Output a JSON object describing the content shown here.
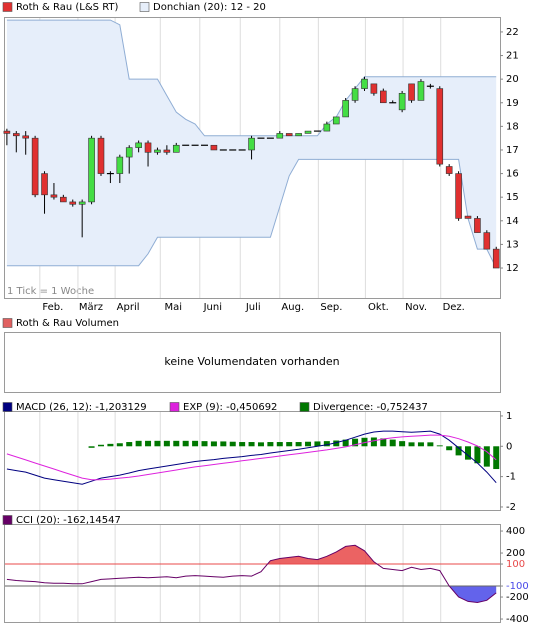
{
  "chart_data": [
    {
      "type": "candlestick",
      "series": [
        {
          "name": "Roth & Rau (L&S RT)",
          "up_color": "#44dd44",
          "down_color": "#e03030",
          "open": [
            17.8,
            17.7,
            17.6,
            17.5,
            16.0,
            15.1,
            15.0,
            14.8,
            14.7,
            14.8,
            17.5,
            16.0,
            16.0,
            16.7,
            17.1,
            17.3,
            16.9,
            17.0,
            16.9,
            17.2,
            17.2,
            17.2,
            17.2,
            17.0,
            17.0,
            17.0,
            17.0,
            17.5,
            17.5,
            17.5,
            17.7,
            17.6,
            17.7,
            17.8,
            17.8,
            18.1,
            18.4,
            19.1,
            19.6,
            19.8,
            19.5,
            19.0,
            18.7,
            19.8,
            19.1,
            19.7,
            19.6,
            16.3,
            16.0,
            14.2,
            14.1,
            13.5,
            12.8
          ],
          "high": [
            17.9,
            17.8,
            17.8,
            17.6,
            16.1,
            15.6,
            15.1,
            14.9,
            14.9,
            17.6,
            17.6,
            16.1,
            16.8,
            17.2,
            17.4,
            17.4,
            17.1,
            17.2,
            17.3,
            17.2,
            17.2,
            17.2,
            17.2,
            17.0,
            17.0,
            17.0,
            17.6,
            17.5,
            17.5,
            17.8,
            17.7,
            17.7,
            17.8,
            17.8,
            18.2,
            18.4,
            19.2,
            19.7,
            20.1,
            19.8,
            19.6,
            19.1,
            19.5,
            19.8,
            20.0,
            19.8,
            19.7,
            16.4,
            16.1,
            14.2,
            14.2,
            13.6,
            12.9
          ],
          "low": [
            17.2,
            16.9,
            16.8,
            15.0,
            14.3,
            14.9,
            14.8,
            14.6,
            13.3,
            14.7,
            15.9,
            15.6,
            15.6,
            16.0,
            16.9,
            16.3,
            16.8,
            16.8,
            16.9,
            17.2,
            17.2,
            17.2,
            17.0,
            17.0,
            17.0,
            17.0,
            16.6,
            17.5,
            17.5,
            17.5,
            17.6,
            17.6,
            17.7,
            17.8,
            17.8,
            18.1,
            18.4,
            19.0,
            19.5,
            19.3,
            19.0,
            19.0,
            18.6,
            19.0,
            19.1,
            19.6,
            16.3,
            15.9,
            14.0,
            14.1,
            13.5,
            12.8,
            12.0
          ],
          "close": [
            17.7,
            17.6,
            17.5,
            15.1,
            15.1,
            15.0,
            14.8,
            14.7,
            14.8,
            17.5,
            16.0,
            16.0,
            16.7,
            17.1,
            17.3,
            16.9,
            17.0,
            16.9,
            17.2,
            17.2,
            17.2,
            17.2,
            17.0,
            17.0,
            17.0,
            17.0,
            17.5,
            17.5,
            17.5,
            17.7,
            17.6,
            17.7,
            17.8,
            17.8,
            18.1,
            18.4,
            19.1,
            19.6,
            20.0,
            19.4,
            19.0,
            19.0,
            19.4,
            19.1,
            19.9,
            19.7,
            16.4,
            16.0,
            14.1,
            14.1,
            13.5,
            12.8,
            12.0
          ]
        },
        {
          "name": "Donchian (20): 12 - 20",
          "color": "#e6eefa",
          "line_color": "#8fadd4",
          "upper": [
            22.5,
            22.5,
            22.5,
            22.5,
            22.5,
            22.5,
            22.5,
            22.5,
            22.5,
            22.5,
            22.5,
            22.5,
            22.3,
            20.0,
            20.0,
            20.0,
            20.0,
            19.3,
            18.6,
            18.3,
            18.1,
            17.6,
            17.6,
            17.6,
            17.6,
            17.6,
            17.6,
            17.6,
            17.6,
            17.6,
            17.6,
            17.6,
            17.6,
            17.6,
            18.1,
            18.4,
            19.1,
            19.6,
            20.1,
            20.1,
            20.1,
            20.1,
            20.1,
            20.1,
            20.1,
            20.1,
            20.1,
            20.1,
            20.1,
            20.1,
            20.1,
            20.1,
            20.1
          ],
          "lower": [
            12.1,
            12.1,
            12.1,
            12.1,
            12.1,
            12.1,
            12.1,
            12.1,
            12.1,
            12.1,
            12.1,
            12.1,
            12.1,
            12.1,
            12.1,
            12.6,
            13.3,
            13.3,
            13.3,
            13.3,
            13.3,
            13.3,
            13.3,
            13.3,
            13.3,
            13.3,
            13.3,
            13.3,
            13.3,
            14.6,
            15.9,
            16.6,
            16.6,
            16.6,
            16.6,
            16.6,
            16.6,
            16.6,
            16.6,
            16.6,
            16.6,
            16.6,
            16.6,
            16.6,
            16.6,
            16.6,
            16.6,
            16.6,
            16.6,
            14.1,
            12.8,
            12.8,
            12.0
          ]
        }
      ],
      "categories": [
        null,
        null,
        null,
        null,
        null,
        null,
        null,
        null,
        null,
        null,
        null,
        null,
        null,
        null,
        null,
        null,
        null,
        null,
        null,
        null,
        null,
        null,
        null,
        null,
        null,
        null,
        null,
        null,
        null,
        null,
        null,
        null,
        null,
        null,
        null,
        null,
        null,
        null,
        null,
        null,
        null,
        null,
        null,
        null,
        null,
        null,
        null,
        null,
        null,
        null,
        null,
        null,
        null
      ],
      "xlim": [
        -0.2,
        52.4
      ],
      "xticks": [
        {
          "value": 3.5,
          "label": "Feb."
        },
        {
          "value": 7.55,
          "label": "März"
        },
        {
          "value": 11.5,
          "label": "April"
        },
        {
          "value": 16.3,
          "label": "Mai"
        },
        {
          "value": 20.5,
          "label": "Juni"
        },
        {
          "value": 24.8,
          "label": "Juli"
        },
        {
          "value": 29.0,
          "label": "Aug."
        },
        {
          "value": 33.1,
          "label": "Sep."
        },
        {
          "value": 38.1,
          "label": "Okt."
        },
        {
          "value": 42.1,
          "label": "Nov."
        },
        {
          "value": 46.1,
          "label": "Dez."
        }
      ],
      "ylim": [
        10.73,
        22.59
      ],
      "yticks": [
        12,
        13,
        14,
        15,
        16,
        17,
        18,
        19,
        20,
        21,
        22
      ],
      "annotation": "1 Tick = 1 Woche",
      "grid": true
    },
    {
      "type": "volume",
      "legend": "Roth & Rau Volumen",
      "color": "#e06060",
      "message": "keine Volumendaten vorhanden"
    },
    {
      "type": "macd",
      "series": [
        {
          "name": "MACD (26, 12): -1,203129",
          "color": "#000080",
          "style": "line",
          "values": [
            -0.75,
            -0.8,
            -0.85,
            -0.95,
            -1.05,
            -1.1,
            -1.15,
            -1.2,
            -1.25,
            -1.15,
            -1.05,
            -1.0,
            -0.95,
            -0.88,
            -0.8,
            -0.75,
            -0.7,
            -0.65,
            -0.6,
            -0.55,
            -0.5,
            -0.47,
            -0.44,
            -0.4,
            -0.37,
            -0.34,
            -0.3,
            -0.27,
            -0.22,
            -0.18,
            -0.14,
            -0.1,
            -0.05,
            0.0,
            0.05,
            0.12,
            0.2,
            0.3,
            0.4,
            0.47,
            0.5,
            0.5,
            0.48,
            0.46,
            0.48,
            0.5,
            0.4,
            0.2,
            -0.05,
            -0.3,
            -0.55,
            -0.85,
            -1.2
          ]
        },
        {
          "name": "EXP (9): -0,450692",
          "color": "#dd22dd",
          "style": "line",
          "values": [
            -0.25,
            -0.35,
            -0.45,
            -0.55,
            -0.65,
            -0.75,
            -0.85,
            -0.95,
            -1.05,
            -1.1,
            -1.1,
            -1.08,
            -1.05,
            -1.02,
            -0.98,
            -0.93,
            -0.88,
            -0.83,
            -0.78,
            -0.73,
            -0.68,
            -0.64,
            -0.6,
            -0.56,
            -0.52,
            -0.48,
            -0.44,
            -0.4,
            -0.36,
            -0.32,
            -0.28,
            -0.24,
            -0.2,
            -0.16,
            -0.12,
            -0.07,
            -0.02,
            0.05,
            0.12,
            0.18,
            0.24,
            0.28,
            0.31,
            0.33,
            0.35,
            0.37,
            0.37,
            0.33,
            0.25,
            0.14,
            0.01,
            -0.18,
            -0.45
          ]
        },
        {
          "name": "Divergence: -0,752437",
          "color": "#007700",
          "style": "bar",
          "values": [
            null,
            null,
            null,
            null,
            null,
            null,
            null,
            null,
            null,
            -0.05,
            0.05,
            0.08,
            0.1,
            0.14,
            0.18,
            0.18,
            0.18,
            0.18,
            0.18,
            0.18,
            0.18,
            0.17,
            0.16,
            0.16,
            0.15,
            0.14,
            0.14,
            0.13,
            0.14,
            0.14,
            0.14,
            0.14,
            0.15,
            0.16,
            0.17,
            0.19,
            0.22,
            0.25,
            0.28,
            0.29,
            0.26,
            0.22,
            0.17,
            0.13,
            0.13,
            0.13,
            0.03,
            -0.13,
            -0.3,
            -0.44,
            -0.56,
            -0.67,
            -0.75
          ]
        }
      ],
      "ylim": [
        -2.1,
        1.13
      ],
      "yticks": [
        1,
        0,
        -1,
        -2
      ],
      "grid": true
    },
    {
      "type": "cci",
      "series": [
        {
          "name": "CCI (20): -162,14547",
          "color": "#660066",
          "values": [
            -40,
            -50,
            -55,
            -60,
            -70,
            -75,
            -75,
            -80,
            -80,
            -60,
            -40,
            -35,
            -30,
            -25,
            -20,
            -25,
            -20,
            -15,
            -25,
            -10,
            -5,
            -10,
            -15,
            -20,
            -10,
            -5,
            -10,
            30,
            130,
            150,
            160,
            170,
            150,
            140,
            170,
            210,
            260,
            270,
            220,
            120,
            60,
            50,
            40,
            70,
            50,
            60,
            40,
            -100,
            -200,
            -240,
            -250,
            -230,
            -162
          ]
        }
      ],
      "bands": {
        "upper": 100,
        "lower": -100,
        "upper_color": "#e84848",
        "lower_color": "#4848e8"
      },
      "ylim": [
        -427,
        455
      ],
      "yticks": [
        400,
        200,
        100,
        -100,
        -200,
        -400
      ],
      "grid": true
    }
  ]
}
